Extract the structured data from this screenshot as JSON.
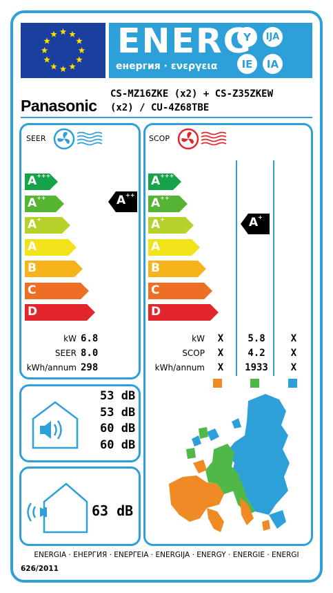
{
  "header": {
    "energy_title": "ENERG",
    "energy_subtitle": "енергия · ενεργεια",
    "languages": [
      "Y",
      "IJA",
      "IE",
      "IA"
    ],
    "brand": "Panasonic",
    "model_line1": "CS-MZ16ZKE (x2) + CS-Z35ZKEW",
    "model_line2": "(x2) / CU-4Z68TBE"
  },
  "cooling": {
    "title": "SEER",
    "classes": [
      {
        "letter": "A",
        "sup": "+++",
        "color": "#17a34a"
      },
      {
        "letter": "A",
        "sup": "++",
        "color": "#55b533"
      },
      {
        "letter": "A",
        "sup": "+",
        "color": "#b7d12a"
      },
      {
        "letter": "A",
        "sup": "",
        "color": "#f2e21a"
      },
      {
        "letter": "B",
        "sup": "",
        "color": "#f7b31c"
      },
      {
        "letter": "C",
        "sup": "",
        "color": "#ee6f23"
      },
      {
        "letter": "D",
        "sup": "",
        "color": "#e3262b"
      }
    ],
    "rating": {
      "letter": "A",
      "sup": "++"
    },
    "rows": [
      {
        "label": "kW",
        "value": "6.8"
      },
      {
        "label": "SEER",
        "value": "8.0"
      },
      {
        "label": "kWh/annum",
        "value": "298"
      }
    ]
  },
  "heating": {
    "title": "SCOP",
    "classes": [
      {
        "letter": "A",
        "sup": "+++",
        "color": "#17a34a"
      },
      {
        "letter": "A",
        "sup": "++",
        "color": "#55b533"
      },
      {
        "letter": "A",
        "sup": "+",
        "color": "#b7d12a"
      },
      {
        "letter": "A",
        "sup": "",
        "color": "#f2e21a"
      },
      {
        "letter": "B",
        "sup": "",
        "color": "#f7b31c"
      },
      {
        "letter": "C",
        "sup": "",
        "color": "#ee6f23"
      },
      {
        "letter": "D",
        "sup": "",
        "color": "#e3262b"
      }
    ],
    "rating": {
      "letter": "A",
      "sup": "+"
    },
    "rows": [
      {
        "label": "kW",
        "values": [
          "X",
          "5.8",
          "X"
        ]
      },
      {
        "label": "SCOP",
        "values": [
          "X",
          "4.2",
          "X"
        ]
      },
      {
        "label": "kWh/annum",
        "values": [
          "X",
          "1933",
          "X"
        ]
      }
    ],
    "zone_colors": [
      "#f08a24",
      "#4fb848",
      "#2d9fd9"
    ]
  },
  "noise_indoor": [
    "53 dB",
    "53 dB",
    "60 dB",
    "60 dB"
  ],
  "noise_outdoor": "63 dB",
  "footer": {
    "languages": "ENERGIA · ЕНЕРГИЯ · ΕΝΕΡΓΕΙΑ · ENERGIJA · ENERGY · ENERGIE · ENERGI",
    "regulation": "626/2011"
  }
}
